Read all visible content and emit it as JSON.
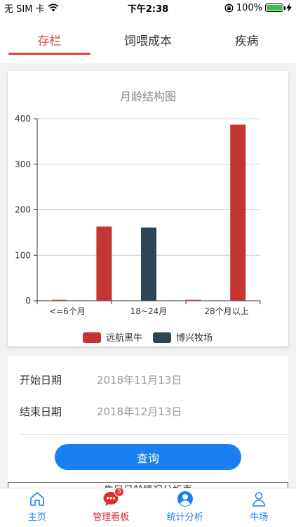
{
  "status_bar": {
    "carrier": "无 SIM 卡",
    "time": "下午2:38",
    "battery": "100%",
    "battery_level": 1.0
  },
  "tabs": [
    {
      "label": "存栏",
      "active": true
    },
    {
      "label": "饲喂成本",
      "active": false
    },
    {
      "label": "疾病",
      "active": false
    }
  ],
  "chart_data": {
    "type": "bar",
    "title": "月龄结构图",
    "categories": [
      "<=6个月",
      "18~24月",
      "28个月以上"
    ],
    "slots": [
      {
        "name": "远航黑牛",
        "value": 2
      },
      {
        "name": "远航黑牛",
        "value": 163
      },
      {
        "name": "博兴牧场",
        "value": 161
      },
      {
        "name": "远航黑牛",
        "value": 2
      },
      {
        "name": "远航黑牛",
        "value": 387
      }
    ],
    "series": [
      {
        "name": "远航黑牛",
        "color": "#c23531"
      },
      {
        "name": "博兴牧场",
        "color": "#2f4554"
      }
    ],
    "yticks": [
      0,
      100,
      200,
      300,
      400
    ],
    "ylim": [
      0,
      400
    ],
    "legend_position": "bottom",
    "grid": true
  },
  "form": {
    "start_label": "开始日期",
    "start_value": "2018年11月13日",
    "end_label": "结束日期",
    "end_value": "2018年12月13日",
    "query_label": "查询",
    "next_section_title": "牛只月龄情况分析表"
  },
  "bottom_nav": [
    {
      "label": "主页",
      "icon": "home-icon",
      "active": false
    },
    {
      "label": "管理看板",
      "icon": "chat-icon",
      "active": true,
      "badge": "5"
    },
    {
      "label": "统计分析",
      "icon": "user-circle-icon",
      "active": false
    },
    {
      "label": "牛场",
      "icon": "person-icon",
      "active": false
    }
  ]
}
